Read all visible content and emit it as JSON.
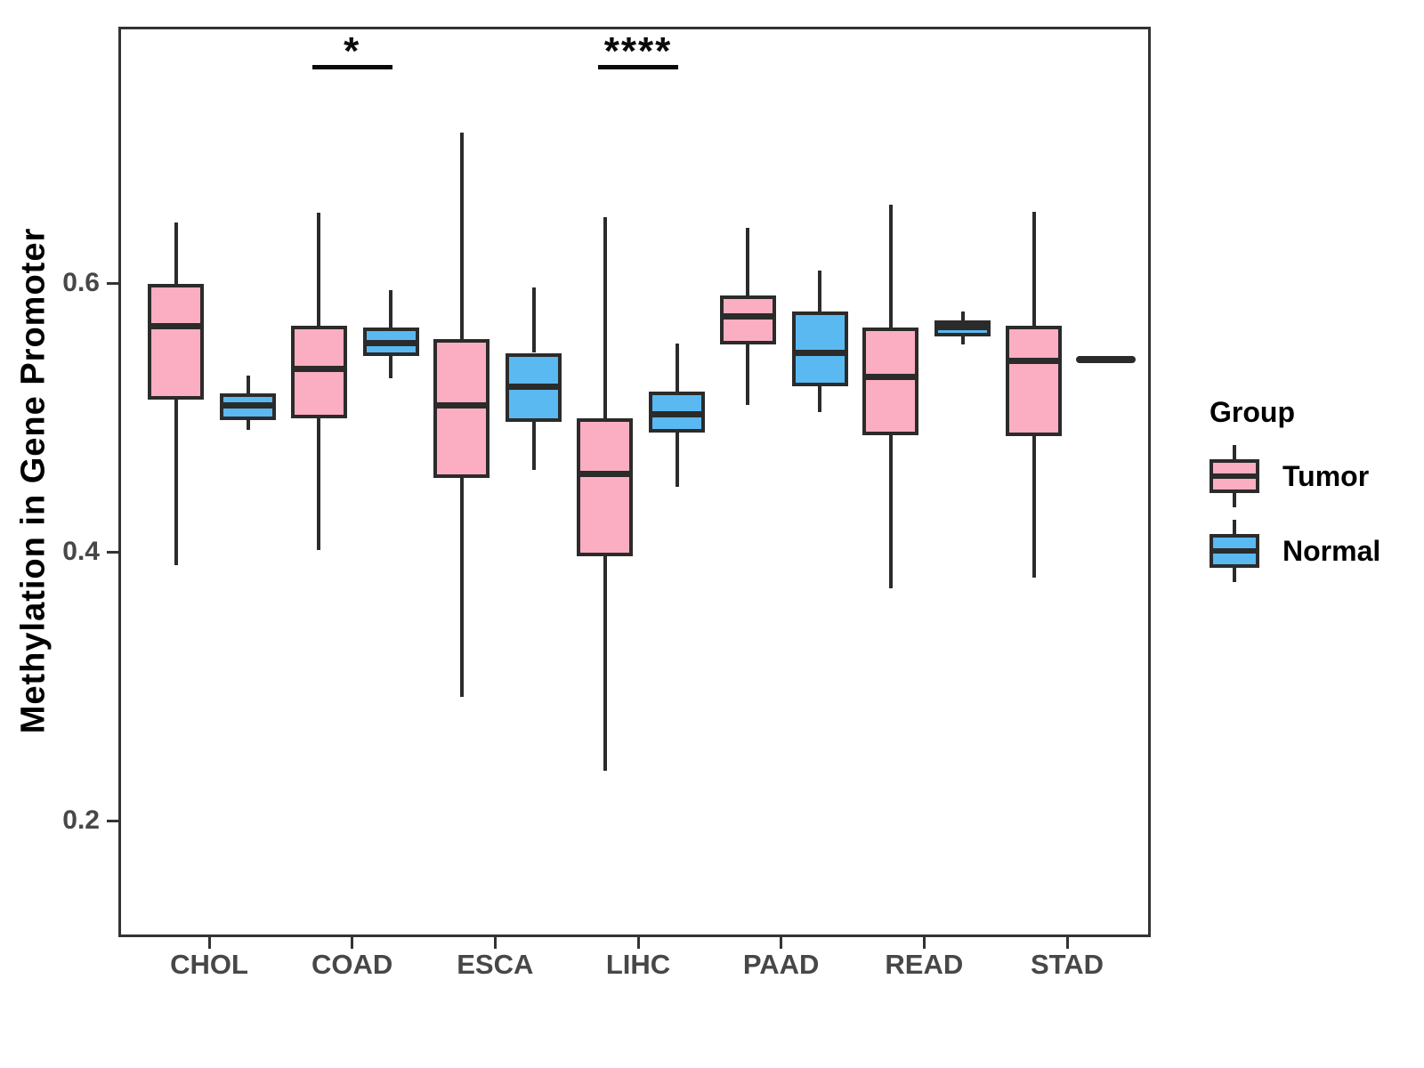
{
  "chart_data": {
    "type": "boxplot",
    "title": "",
    "xlabel": "",
    "ylabel": "Methylation in Gene Promoter",
    "legend_title": "Group",
    "legend_position": "right",
    "grid": false,
    "ylim": [
      0.113,
      0.791
    ],
    "y_ticks": [
      "0.2",
      "0.4",
      "0.6"
    ],
    "categories": [
      "CHOL",
      "COAD",
      "ESCA",
      "LIHC",
      "PAAD",
      "READ",
      "STAD"
    ],
    "groups": [
      {
        "name": "Tumor",
        "color": "#FBAEC1"
      },
      {
        "name": "Normal",
        "color": "#5AB9F0"
      }
    ],
    "boxes": [
      {
        "category": "CHOL",
        "tumor": {
          "min": 0.392,
          "q1": 0.515,
          "median": 0.57,
          "q3": 0.601,
          "max": 0.647
        },
        "normal": {
          "min": 0.493,
          "q1": 0.5,
          "median": 0.511,
          "q3": 0.52,
          "max": 0.533
        }
      },
      {
        "category": "COAD",
        "tumor": {
          "min": 0.403,
          "q1": 0.501,
          "median": 0.538,
          "q3": 0.57,
          "max": 0.654
        },
        "normal": {
          "min": 0.531,
          "q1": 0.548,
          "median": 0.557,
          "q3": 0.569,
          "max": 0.597
        }
      },
      {
        "category": "ESCA",
        "tumor": {
          "min": 0.294,
          "q1": 0.457,
          "median": 0.511,
          "q3": 0.56,
          "max": 0.714
        },
        "normal": {
          "min": 0.463,
          "q1": 0.499,
          "median": 0.525,
          "q3": 0.55,
          "max": 0.599
        }
      },
      {
        "category": "LIHC",
        "tumor": {
          "min": 0.239,
          "q1": 0.399,
          "median": 0.46,
          "q3": 0.501,
          "max": 0.651
        },
        "normal": {
          "min": 0.45,
          "q1": 0.491,
          "median": 0.504,
          "q3": 0.521,
          "max": 0.557
        }
      },
      {
        "category": "PAAD",
        "tumor": {
          "min": 0.511,
          "q1": 0.556,
          "median": 0.577,
          "q3": 0.593,
          "max": 0.643
        },
        "normal": {
          "min": 0.506,
          "q1": 0.525,
          "median": 0.55,
          "q3": 0.581,
          "max": 0.611
        }
      },
      {
        "category": "READ",
        "tumor": {
          "min": 0.375,
          "q1": 0.489,
          "median": 0.532,
          "q3": 0.569,
          "max": 0.66
        },
        "normal": {
          "min": 0.556,
          "q1": 0.562,
          "median": 0.569,
          "q3": 0.574,
          "max": 0.581
        }
      },
      {
        "category": "STAD",
        "tumor": {
          "min": 0.383,
          "q1": 0.488,
          "median": 0.544,
          "q3": 0.57,
          "max": 0.655
        },
        "normal": {
          "min": 0.545,
          "q1": 0.545,
          "median": 0.545,
          "q3": 0.545,
          "max": 0.545
        }
      }
    ],
    "significance": [
      {
        "category": "COAD",
        "label": "*"
      },
      {
        "category": "LIHC",
        "label": "****"
      }
    ]
  }
}
